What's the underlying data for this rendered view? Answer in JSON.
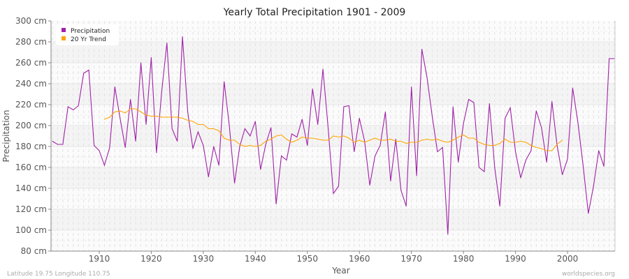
{
  "chart_data": {
    "type": "line",
    "title": "Yearly Total Precipitation 1901 - 2009",
    "xlabel": "Year",
    "ylabel": "Precipitation",
    "xlim": [
      1901,
      2009
    ],
    "ylim": [
      80,
      300
    ],
    "y_unit": "cm",
    "yticks": [
      80,
      100,
      120,
      140,
      160,
      180,
      200,
      220,
      240,
      260,
      280,
      300
    ],
    "xticks": [
      1910,
      1920,
      1930,
      1940,
      1950,
      1960,
      1970,
      1980,
      1990,
      2000
    ],
    "grid": true,
    "legend_position": "top-left",
    "series": [
      {
        "name": "Precipitation",
        "color": "#a020a8",
        "x_start": 1901,
        "values": [
          185,
          182,
          182,
          218,
          215,
          219,
          250,
          253,
          181,
          176,
          162,
          179,
          237,
          207,
          179,
          225,
          185,
          260,
          201,
          265,
          174,
          232,
          279,
          197,
          185,
          285,
          213,
          178,
          194,
          181,
          151,
          180,
          162,
          242,
          200,
          145,
          180,
          197,
          190,
          204,
          158,
          182,
          198,
          125,
          171,
          167,
          192,
          189,
          206,
          181,
          235,
          201,
          254,
          197,
          135,
          142,
          218,
          219,
          175,
          207,
          185,
          143,
          171,
          181,
          213,
          147,
          187,
          138,
          123,
          237,
          152,
          273,
          246,
          209,
          175,
          179,
          96,
          218,
          165,
          202,
          225,
          222,
          160,
          156,
          221,
          160,
          123,
          207,
          217,
          175,
          150,
          167,
          176,
          214,
          198,
          165,
          223,
          181,
          153,
          168,
          236,
          203,
          162,
          116,
          142,
          176,
          161,
          264,
          264
        ]
      },
      {
        "name": "20 Yr Trend",
        "color": "#ffa500",
        "x_start": 1911,
        "values": [
          206,
          208,
          213,
          214,
          212,
          216,
          216,
          213,
          210,
          209,
          209,
          208,
          208,
          208,
          208,
          207,
          205,
          204,
          201,
          201,
          197,
          197,
          195,
          188,
          186,
          186,
          182,
          180,
          181,
          180,
          181,
          185,
          187,
          190,
          191,
          187,
          184,
          186,
          189,
          188,
          188,
          187,
          186,
          186,
          190,
          189,
          190,
          188,
          184,
          186,
          184,
          186,
          188,
          186,
          186,
          187,
          185,
          185,
          183,
          184,
          184,
          186,
          187,
          186,
          187,
          185,
          184,
          186,
          189,
          191,
          188,
          188,
          184,
          182,
          181,
          181,
          183,
          187,
          184,
          184,
          185,
          184,
          181,
          179,
          178,
          176,
          176,
          182,
          186
        ]
      }
    ]
  },
  "footer": {
    "left": "Latitude 19.75 Longitude 110.75",
    "right": "worldspecies.org"
  }
}
